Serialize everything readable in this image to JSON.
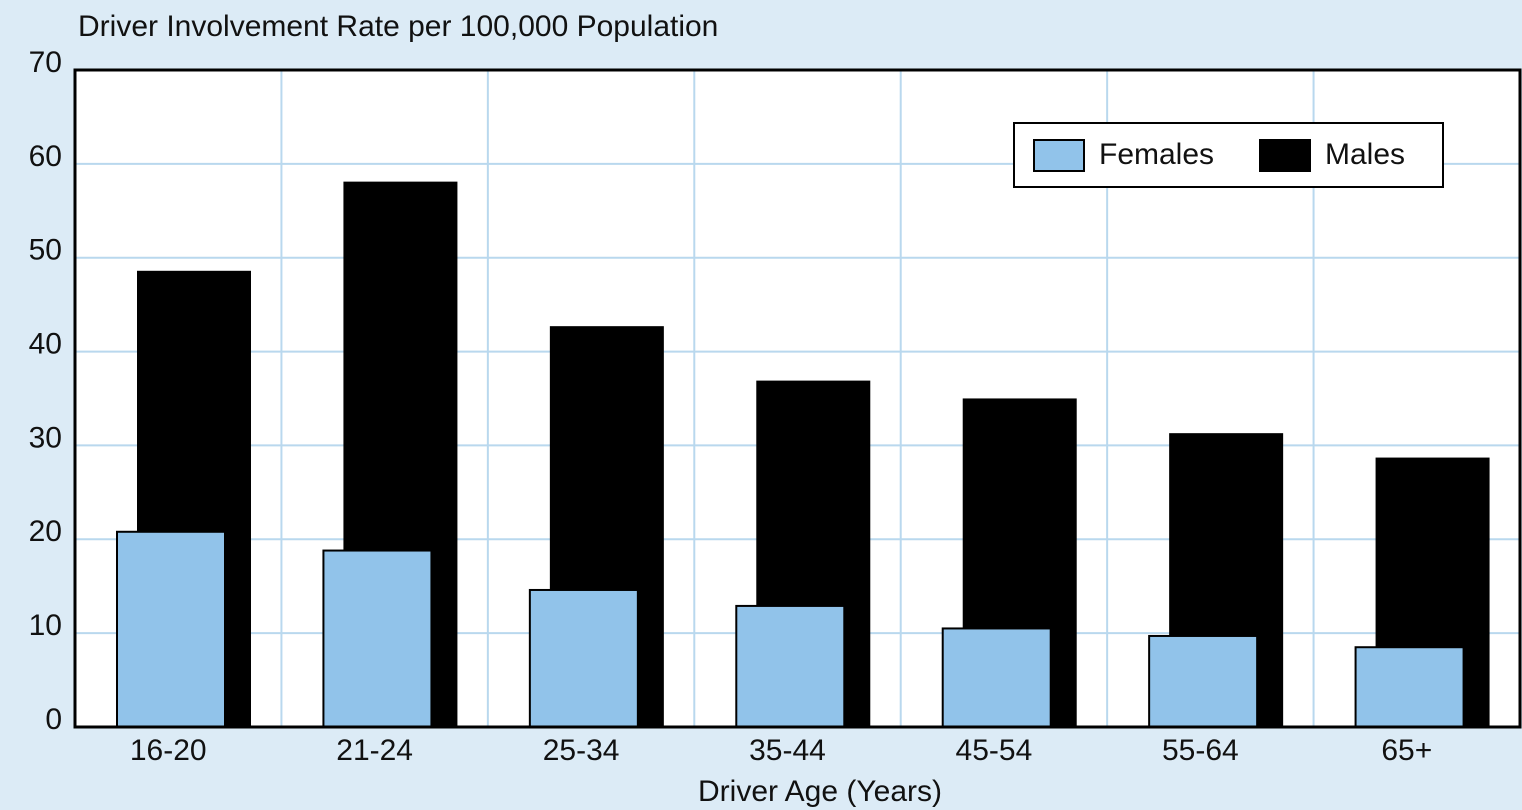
{
  "chart_data": {
    "type": "bar",
    "title": "Driver Involvement Rate per 100,000 Population",
    "x_label": "Driver Age (Years)",
    "categories": [
      "16-20",
      "21-24",
      "25-34",
      "35-44",
      "45-54",
      "55-64",
      "65+"
    ],
    "series": [
      {
        "name": "Males",
        "color": "#000000",
        "values": [
          48.5,
          58,
          42.6,
          36.8,
          34.9,
          31.2,
          28.6
        ]
      },
      {
        "name": "Females",
        "color": "#91c3ea",
        "values": [
          20.8,
          18.8,
          14.6,
          12.9,
          10.5,
          9.7,
          8.5
        ]
      }
    ],
    "ylim": [
      0,
      70
    ],
    "yticks": [
      0,
      10,
      20,
      30,
      40,
      50,
      60,
      70
    ],
    "grid": true,
    "legend": "upper right"
  }
}
